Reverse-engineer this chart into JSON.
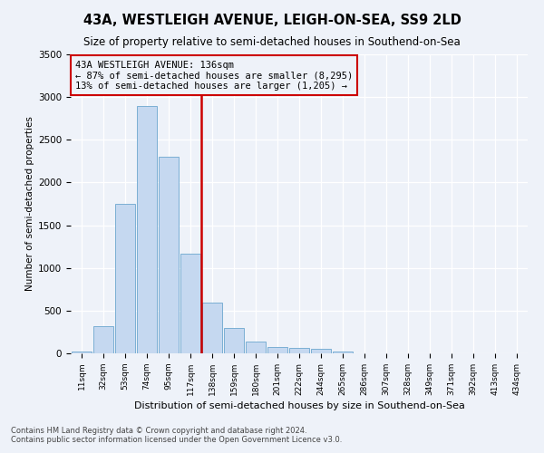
{
  "title": "43A, WESTLEIGH AVENUE, LEIGH-ON-SEA, SS9 2LD",
  "subtitle": "Size of property relative to semi-detached houses in Southend-on-Sea",
  "xlabel": "Distribution of semi-detached houses by size in Southend-on-Sea",
  "ylabel": "Number of semi-detached properties",
  "footnote1": "Contains HM Land Registry data © Crown copyright and database right 2024.",
  "footnote2": "Contains public sector information licensed under the Open Government Licence v3.0.",
  "bins": [
    "11sqm",
    "32sqm",
    "53sqm",
    "74sqm",
    "95sqm",
    "117sqm",
    "138sqm",
    "159sqm",
    "180sqm",
    "201sqm",
    "222sqm",
    "244sqm",
    "265sqm",
    "286sqm",
    "307sqm",
    "328sqm",
    "349sqm",
    "371sqm",
    "392sqm",
    "413sqm",
    "434sqm"
  ],
  "values": [
    20,
    320,
    1750,
    2900,
    2300,
    1170,
    590,
    295,
    140,
    75,
    65,
    55,
    25,
    5,
    3,
    2,
    1,
    1,
    0,
    0,
    0
  ],
  "bar_color": "#c5d8f0",
  "bar_edge_color": "#7bafd4",
  "vline_index": 6,
  "vline_color": "#cc0000",
  "annotation_line1": "43A WESTLEIGH AVENUE: 136sqm",
  "annotation_line2": "← 87% of semi-detached houses are smaller (8,295)",
  "annotation_line3": "13% of semi-detached houses are larger (1,205) →",
  "annotation_box_color": "#cc0000",
  "ylim": [
    0,
    3500
  ],
  "background_color": "#eef2f9",
  "grid_color": "#ffffff",
  "title_fontsize": 10.5,
  "subtitle_fontsize": 8.5
}
